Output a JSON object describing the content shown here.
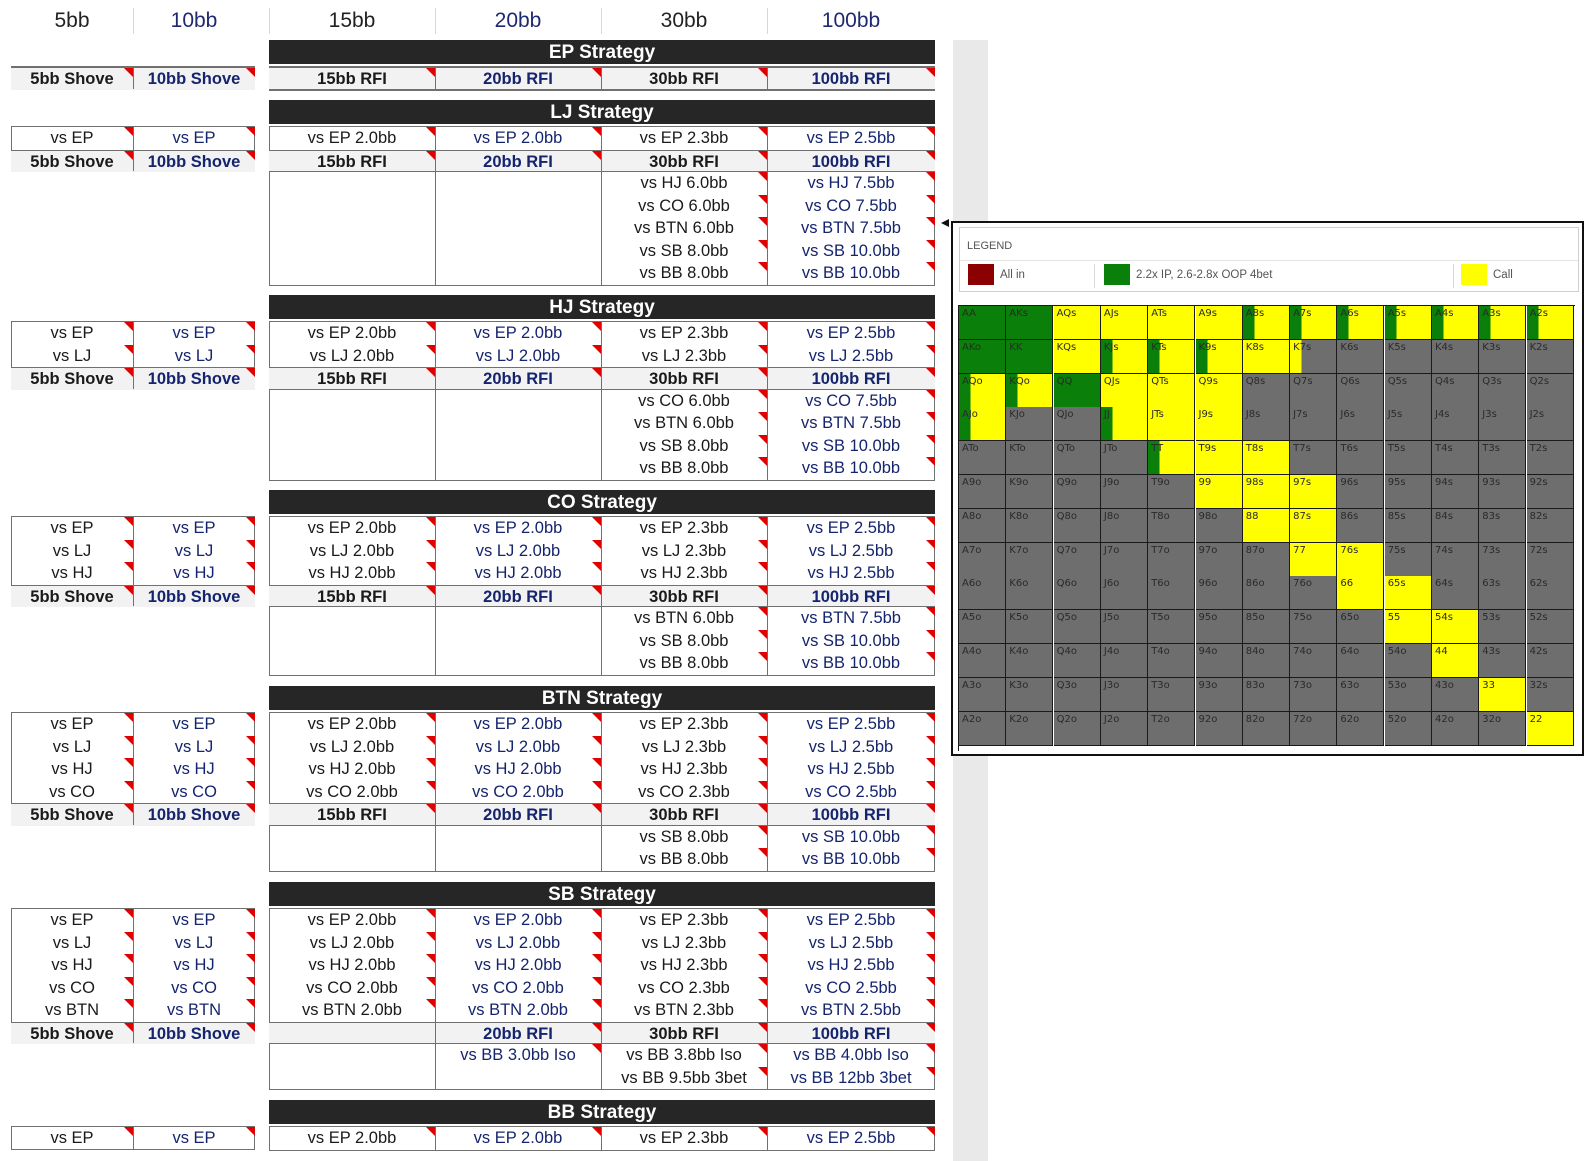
{
  "header": [
    "5bb",
    "10bb",
    "15bb",
    "20bb",
    "30bb",
    "100bb"
  ],
  "sections": [
    {
      "title": "EP Strategy",
      "short": [
        [
          "5bb Shove",
          "10bb Shove"
        ]
      ],
      "long_vs": [],
      "rfi": [
        "15bb RFI",
        "20bb RFI",
        "30bb RFI",
        "100bb RFI"
      ],
      "after": [],
      "rfi_empty_first": false
    },
    {
      "title": "LJ Strategy",
      "short": [
        [
          "vs EP",
          "vs EP"
        ],
        [
          "5bb Shove",
          "10bb Shove"
        ]
      ],
      "long_vs": [
        [
          "vs EP 2.0bb",
          "vs EP 2.0bb",
          "vs EP 2.3bb",
          "vs EP 2.5bb"
        ]
      ],
      "rfi": [
        "15bb RFI",
        "20bb RFI",
        "30bb RFI",
        "100bb RFI"
      ],
      "after": [
        [
          "",
          "",
          "vs HJ 6.0bb",
          "vs HJ 7.5bb"
        ],
        [
          "",
          "",
          "vs CO 6.0bb",
          "vs CO 7.5bb"
        ],
        [
          "",
          "",
          "vs BTN 6.0bb",
          "vs BTN 7.5bb"
        ],
        [
          "",
          "",
          "vs SB 8.0bb",
          "vs SB 10.0bb"
        ],
        [
          "",
          "",
          "vs BB 8.0bb",
          "vs BB 10.0bb"
        ]
      ],
      "rfi_empty_first": false
    },
    {
      "title": "HJ Strategy",
      "short": [
        [
          "vs EP",
          "vs EP"
        ],
        [
          "vs LJ",
          "vs LJ"
        ],
        [
          "5bb Shove",
          "10bb Shove"
        ]
      ],
      "long_vs": [
        [
          "vs EP 2.0bb",
          "vs EP 2.0bb",
          "vs EP 2.3bb",
          "vs EP 2.5bb"
        ],
        [
          "vs LJ 2.0bb",
          "vs LJ 2.0bb",
          "vs LJ 2.3bb",
          "vs LJ 2.5bb"
        ]
      ],
      "rfi": [
        "15bb RFI",
        "20bb RFI",
        "30bb RFI",
        "100bb RFI"
      ],
      "after": [
        [
          "",
          "",
          "vs CO 6.0bb",
          "vs CO 7.5bb"
        ],
        [
          "",
          "",
          "vs BTN 6.0bb",
          "vs BTN 7.5bb"
        ],
        [
          "",
          "",
          "vs SB 8.0bb",
          "vs SB 10.0bb"
        ],
        [
          "",
          "",
          "vs BB 8.0bb",
          "vs BB 10.0bb"
        ]
      ],
      "rfi_empty_first": false
    },
    {
      "title": "CO Strategy",
      "short": [
        [
          "vs EP",
          "vs EP"
        ],
        [
          "vs LJ",
          "vs LJ"
        ],
        [
          "vs HJ",
          "vs HJ"
        ],
        [
          "5bb Shove",
          "10bb Shove"
        ]
      ],
      "long_vs": [
        [
          "vs EP 2.0bb",
          "vs EP 2.0bb",
          "vs EP 2.3bb",
          "vs EP 2.5bb"
        ],
        [
          "vs LJ 2.0bb",
          "vs LJ 2.0bb",
          "vs LJ 2.3bb",
          "vs LJ 2.5bb"
        ],
        [
          "vs HJ 2.0bb",
          "vs HJ 2.0bb",
          "vs HJ 2.3bb",
          "vs HJ 2.5bb"
        ]
      ],
      "rfi": [
        "15bb RFI",
        "20bb RFI",
        "30bb RFI",
        "100bb RFI"
      ],
      "after": [
        [
          "",
          "",
          "vs BTN 6.0bb",
          "vs BTN 7.5bb"
        ],
        [
          "",
          "",
          "vs SB 8.0bb",
          "vs SB 10.0bb"
        ],
        [
          "",
          "",
          "vs BB 8.0bb",
          "vs BB 10.0bb"
        ]
      ],
      "rfi_empty_first": false
    },
    {
      "title": "BTN Strategy",
      "short": [
        [
          "vs EP",
          "vs EP"
        ],
        [
          "vs LJ",
          "vs LJ"
        ],
        [
          "vs HJ",
          "vs HJ"
        ],
        [
          "vs CO",
          "vs CO"
        ],
        [
          "5bb Shove",
          "10bb Shove"
        ]
      ],
      "long_vs": [
        [
          "vs EP 2.0bb",
          "vs EP 2.0bb",
          "vs EP 2.3bb",
          "vs EP 2.5bb"
        ],
        [
          "vs LJ 2.0bb",
          "vs LJ 2.0bb",
          "vs LJ 2.3bb",
          "vs LJ 2.5bb"
        ],
        [
          "vs HJ 2.0bb",
          "vs HJ 2.0bb",
          "vs HJ 2.3bb",
          "vs HJ 2.5bb"
        ],
        [
          "vs CO 2.0bb",
          "vs CO 2.0bb",
          "vs CO 2.3bb",
          "vs CO 2.5bb"
        ]
      ],
      "rfi": [
        "15bb RFI",
        "20bb RFI",
        "30bb RFI",
        "100bb RFI"
      ],
      "after": [
        [
          "",
          "",
          "vs SB 8.0bb",
          "vs SB 10.0bb"
        ],
        [
          "",
          "",
          "vs BB 8.0bb",
          "vs BB 10.0bb"
        ]
      ],
      "rfi_empty_first": false
    },
    {
      "title": "SB Strategy",
      "short": [
        [
          "vs EP",
          "vs EP"
        ],
        [
          "vs LJ",
          "vs LJ"
        ],
        [
          "vs HJ",
          "vs HJ"
        ],
        [
          "vs CO",
          "vs CO"
        ],
        [
          "vs BTN",
          "vs BTN"
        ],
        [
          "5bb Shove",
          "10bb Shove"
        ]
      ],
      "long_vs": [
        [
          "vs EP 2.0bb",
          "vs EP 2.0bb",
          "vs EP 2.3bb",
          "vs EP 2.5bb"
        ],
        [
          "vs LJ 2.0bb",
          "vs LJ 2.0bb",
          "vs LJ 2.3bb",
          "vs LJ 2.5bb"
        ],
        [
          "vs HJ 2.0bb",
          "vs HJ 2.0bb",
          "vs HJ 2.3bb",
          "vs HJ 2.5bb"
        ],
        [
          "vs CO 2.0bb",
          "vs CO 2.0bb",
          "vs CO 2.3bb",
          "vs CO 2.5bb"
        ],
        [
          "vs BTN 2.0bb",
          "vs BTN 2.0bb",
          "vs BTN 2.3bb",
          "vs BTN 2.5bb"
        ]
      ],
      "rfi": [
        "",
        "20bb RFI",
        "30bb RFI",
        "100bb RFI"
      ],
      "after": [
        [
          "",
          "vs BB 3.0bb Iso",
          "vs BB 3.8bb Iso",
          "vs BB 4.0bb Iso"
        ],
        [
          "",
          "",
          "vs BB 9.5bb 3bet",
          "vs BB 12bb 3bet"
        ]
      ],
      "rfi_empty_first": true
    },
    {
      "title": "BB Strategy",
      "short": [
        [
          "vs EP",
          "vs EP"
        ]
      ],
      "long_vs": [
        [
          "vs EP 2.0bb",
          "vs EP 2.0bb",
          "vs EP 2.3bb",
          "vs EP 2.5bb"
        ]
      ],
      "rfi": null,
      "after": [],
      "rfi_empty_first": false
    }
  ],
  "legend": {
    "title": "LEGEND",
    "items": [
      {
        "label": "All in",
        "color": "#8b0000"
      },
      {
        "label": "2.2x IP, 2.6-2.8x OOP 4bet",
        "color": "#0a7f0a"
      },
      {
        "label": "Call",
        "color": "#ffff00"
      }
    ]
  },
  "colors": {
    "green": "#0a7f0a",
    "yellow": "#ffff00",
    "gray": "#6e6e6e",
    "white": "#ffffff"
  },
  "ranks": [
    "A",
    "K",
    "Q",
    "J",
    "T",
    "9",
    "8",
    "7",
    "6",
    "5",
    "4",
    "3",
    "2"
  ],
  "hand_colors": [
    [
      "G",
      "G",
      "Y",
      "Y",
      "Y",
      "Y",
      "GY",
      "GY",
      "GY",
      "GY",
      "GY",
      "GY",
      "GY"
    ],
    [
      "G",
      "G",
      "Y",
      "GY",
      "GY",
      "GY",
      "Y",
      "YX",
      "X",
      "X",
      "X",
      "X",
      "X"
    ],
    [
      "GY",
      "GY",
      "G",
      "Y",
      "Y",
      "Y",
      "X",
      "X",
      "X",
      "X",
      "X",
      "X",
      "X"
    ],
    [
      "GY",
      "X",
      "X",
      "GY",
      "Y",
      "Y",
      "X",
      "X",
      "X",
      "X",
      "X",
      "X",
      "X"
    ],
    [
      "X",
      "X",
      "X",
      "X",
      "GY",
      "Y",
      "Y",
      "X",
      "X",
      "X",
      "X",
      "X",
      "X"
    ],
    [
      "X",
      "X",
      "X",
      "X",
      "X",
      "Y",
      "Y",
      "Y",
      "X",
      "X",
      "X",
      "X",
      "X"
    ],
    [
      "X",
      "X",
      "X",
      "X",
      "X",
      "X",
      "Y",
      "Y",
      "X",
      "X",
      "X",
      "X",
      "X"
    ],
    [
      "X",
      "X",
      "X",
      "X",
      "X",
      "X",
      "X",
      "Y",
      "Y",
      "X",
      "X",
      "X",
      "X"
    ],
    [
      "X",
      "X",
      "X",
      "X",
      "X",
      "X",
      "X",
      "X",
      "Y",
      "Y",
      "X",
      "X",
      "X"
    ],
    [
      "X",
      "X",
      "X",
      "X",
      "X",
      "X",
      "X",
      "X",
      "X",
      "Y",
      "Y",
      "X",
      "X"
    ],
    [
      "X",
      "X",
      "X",
      "X",
      "X",
      "X",
      "X",
      "X",
      "X",
      "X",
      "Y",
      "X",
      "X"
    ],
    [
      "X",
      "X",
      "X",
      "X",
      "X",
      "X",
      "X",
      "X",
      "X",
      "X",
      "X",
      "Y",
      "X"
    ],
    [
      "X",
      "X",
      "X",
      "X",
      "X",
      "X",
      "X",
      "X",
      "X",
      "X",
      "X",
      "X",
      "Y"
    ]
  ]
}
